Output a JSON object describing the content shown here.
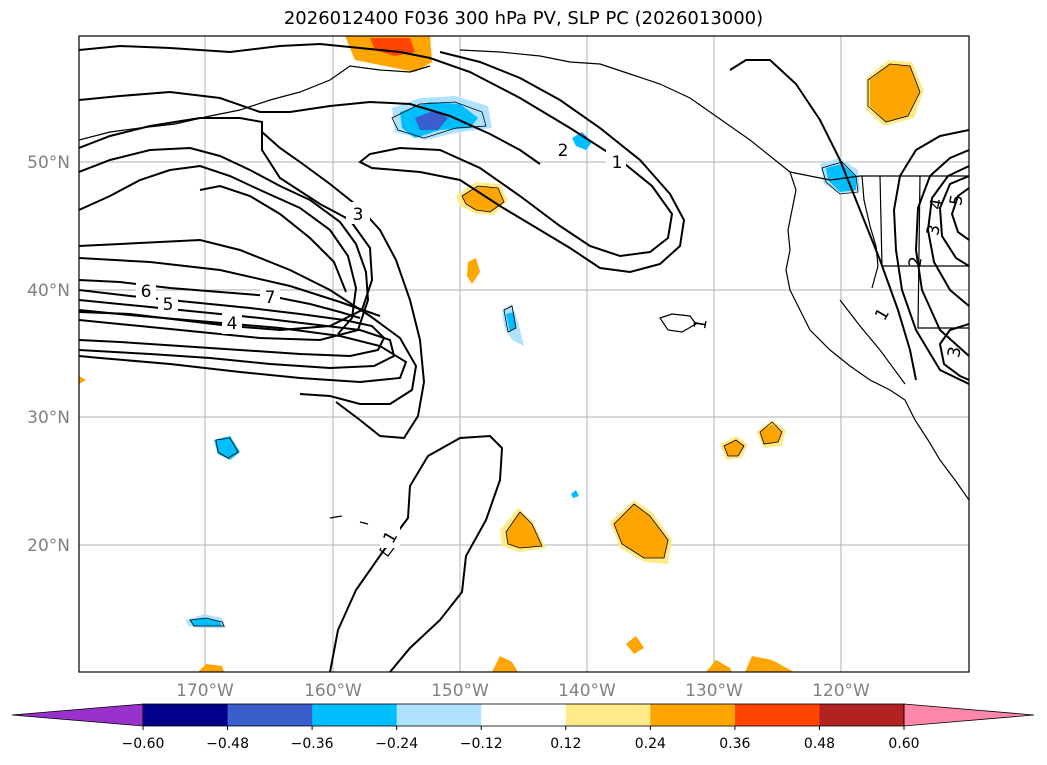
{
  "title": "2026012400 F036 300 hPa PV, SLP PC (2026013000)",
  "lat_labels": [
    "50°N",
    "40°N",
    "30°N",
    "20°N"
  ],
  "lon_labels": [
    "170°W",
    "160°W",
    "150°W",
    "140°W",
    "130°W",
    "120°W"
  ],
  "contour_labels": [
    "3",
    "2",
    "1",
    "6",
    "5",
    "7",
    "4",
    "1",
    "1",
    "4",
    "5",
    "3",
    "2",
    "3",
    "1"
  ],
  "colorbar": {
    "ticks": [
      "−0.60",
      "−0.48",
      "−0.36",
      "−0.24",
      "−0.12",
      "0.12",
      "0.24",
      "0.36",
      "0.48",
      "0.60"
    ],
    "colors": [
      "#9932cc",
      "#00008b",
      "#3a5fcd",
      "#00bfff",
      "#b0e2ff",
      "#ffffff",
      "#ffeb8a",
      "#ffa500",
      "#ff4500",
      "#b22222",
      "#ff88aa"
    ]
  }
}
